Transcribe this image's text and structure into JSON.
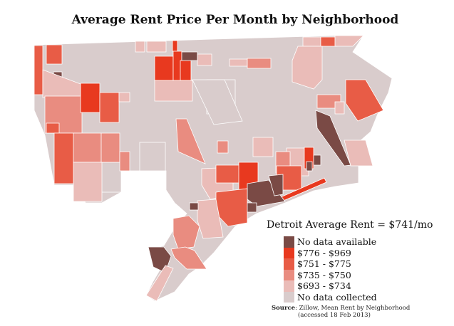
{
  "title": "Average Rent Price Per Month by Neighborhood",
  "average_label": "Detroit Average Rent = $741/mo",
  "legend": [
    {
      "label": "No data available",
      "color": "#7a4a45"
    },
    {
      "label": "$776 - $969",
      "color": "#e8391f"
    },
    {
      "label": "$751 - $775",
      "color": "#e85c46"
    },
    {
      "label": "$735 - $750",
      "color": "#e98c80"
    },
    {
      "label": "$693 - $734",
      "color": "#eabcb8"
    },
    {
      "label": "No data collected",
      "color": "#d9cccc"
    }
  ],
  "source": {
    "label": "Source",
    "text": ": Zillow, Mean Rent by Neighborhood",
    "text2": "(accessed 18 Feb 2013)"
  }
}
